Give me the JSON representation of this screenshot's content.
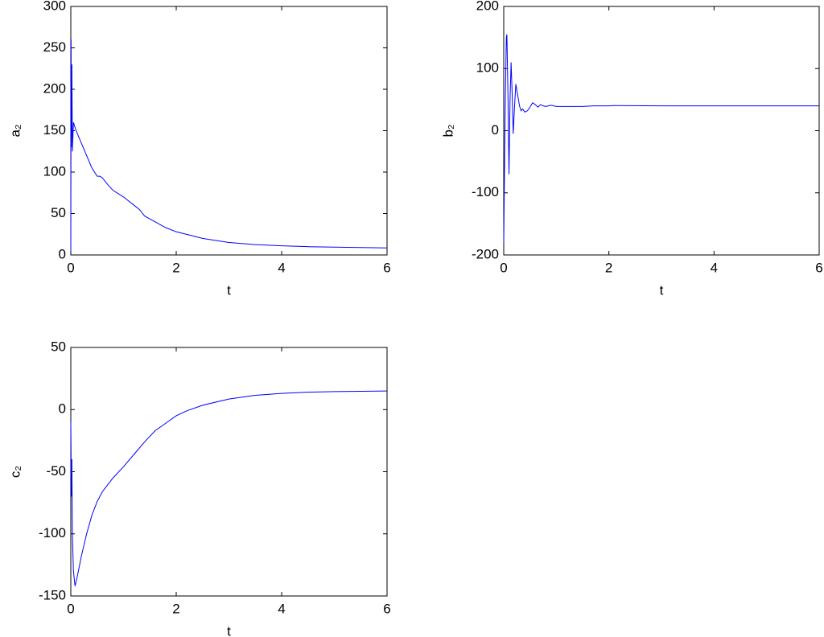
{
  "chart_data": [
    {
      "type": "line",
      "x_label": "t",
      "y_label": "a₂",
      "xlim": [
        0,
        6
      ],
      "xticks": [
        0,
        2,
        4,
        6
      ],
      "ylim": [
        0,
        300
      ],
      "yticks": [
        0,
        50,
        100,
        150,
        200,
        250,
        300
      ],
      "x": [
        0,
        0.005,
        0.01,
        0.02,
        0.03,
        0.05,
        0.1,
        0.2,
        0.3,
        0.4,
        0.5,
        0.55,
        0.6,
        0.7,
        0.8,
        1.0,
        1.2,
        1.3,
        1.4,
        1.6,
        1.8,
        2.0,
        2.5,
        3,
        3.5,
        4,
        4.5,
        5,
        5.5,
        6
      ],
      "series": [
        {
          "color": "#0000ff",
          "values": [
            5,
            260,
            130,
            230,
            125,
            160,
            150,
            135,
            120,
            105,
            95,
            95,
            93,
            85,
            78,
            70,
            60,
            55,
            47,
            40,
            33,
            28,
            20,
            15,
            12.5,
            11,
            10,
            9.5,
            9,
            8.5
          ]
        }
      ]
    },
    {
      "type": "line",
      "x_label": "t",
      "y_label": "b₂",
      "xlim": [
        0,
        6
      ],
      "xticks": [
        0,
        2,
        4,
        6
      ],
      "ylim": [
        -200,
        200
      ],
      "yticks": [
        -200,
        -100,
        0,
        100,
        200
      ],
      "x": [
        0,
        0.01,
        0.02,
        0.03,
        0.05,
        0.06,
        0.08,
        0.1,
        0.12,
        0.14,
        0.16,
        0.18,
        0.2,
        0.23,
        0.26,
        0.3,
        0.33,
        0.36,
        0.4,
        0.45,
        0.5,
        0.55,
        0.6,
        0.65,
        0.7,
        0.75,
        0.8,
        0.9,
        1.0,
        1.5,
        1.7,
        2,
        2.1,
        3,
        4,
        5,
        6
      ],
      "series": [
        {
          "color": "#0000ff",
          "values": [
            -180,
            -100,
            -20,
            50,
            150,
            155,
            60,
            -70,
            50,
            110,
            60,
            -5,
            30,
            75,
            60,
            40,
            32,
            35,
            30,
            32,
            38,
            45,
            42,
            38,
            42,
            40,
            39,
            41,
            39,
            39,
            40,
            40,
            40.5,
            40,
            40,
            40,
            40
          ]
        }
      ]
    },
    {
      "type": "line",
      "x_label": "t",
      "y_label": "c₂",
      "xlim": [
        0,
        6
      ],
      "xticks": [
        0,
        2,
        4,
        6
      ],
      "ylim": [
        -150,
        50
      ],
      "yticks": [
        -150,
        -100,
        -50,
        0,
        50
      ],
      "x": [
        0,
        0.01,
        0.02,
        0.03,
        0.05,
        0.08,
        0.12,
        0.2,
        0.3,
        0.4,
        0.5,
        0.6,
        0.8,
        1.0,
        1.2,
        1.4,
        1.6,
        1.8,
        2.0,
        2.2,
        2.5,
        3,
        3.5,
        4,
        4.5,
        5,
        6
      ],
      "series": [
        {
          "color": "#0000ff",
          "values": [
            -10,
            -70,
            -40,
            -100,
            -130,
            -142,
            -135,
            -118,
            -100,
            -85,
            -74,
            -66,
            -55,
            -46,
            -36,
            -26,
            -17,
            -11,
            -5,
            -1,
            3.5,
            8.5,
            11.5,
            13,
            14,
            14.5,
            15
          ]
        }
      ]
    }
  ]
}
